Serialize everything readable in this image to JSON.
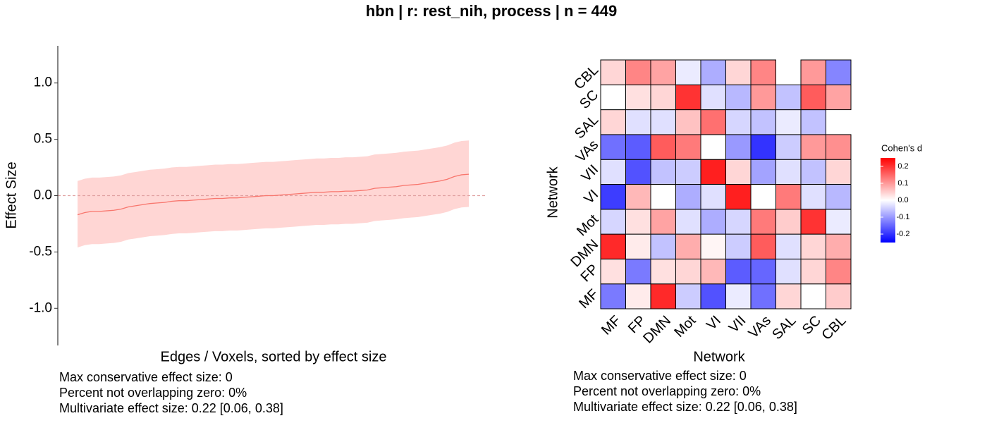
{
  "title": "hbn | r: rest_nih, process | n = 449",
  "chart_data": [
    {
      "type": "line",
      "ylabel": "Effect Size",
      "xlabel": "Edges / Voxels, sorted by effect size",
      "ylim": [
        -1.33,
        1.33
      ],
      "yticks": [
        {
          "value": -1,
          "label": "-1.0"
        },
        -0.5,
        {
          "value": 0,
          "label": "0.0"
        },
        0.5,
        {
          "value": 1,
          "label": "1.0"
        }
      ],
      "hline": 0,
      "color": "#f8766d",
      "band_color": "#ffd6d4",
      "values": [
        -0.17,
        -0.15,
        -0.14,
        -0.14,
        -0.135,
        -0.13,
        -0.12,
        -0.1,
        -0.09,
        -0.08,
        -0.07,
        -0.065,
        -0.06,
        -0.05,
        -0.045,
        -0.045,
        -0.04,
        -0.035,
        -0.03,
        -0.025,
        -0.025,
        -0.02,
        -0.02,
        -0.015,
        -0.01,
        -0.005,
        0.0,
        0.0,
        0.005,
        0.01,
        0.015,
        0.02,
        0.025,
        0.03,
        0.03,
        0.035,
        0.035,
        0.04,
        0.04,
        0.045,
        0.05,
        0.065,
        0.07,
        0.075,
        0.08,
        0.09,
        0.095,
        0.1,
        0.11,
        0.12,
        0.13,
        0.145,
        0.17,
        0.185,
        0.19
      ],
      "upper": [
        0.13,
        0.15,
        0.16,
        0.16,
        0.165,
        0.17,
        0.18,
        0.2,
        0.21,
        0.22,
        0.23,
        0.235,
        0.24,
        0.25,
        0.255,
        0.255,
        0.26,
        0.265,
        0.27,
        0.275,
        0.275,
        0.28,
        0.28,
        0.285,
        0.29,
        0.295,
        0.3,
        0.3,
        0.305,
        0.31,
        0.315,
        0.32,
        0.325,
        0.33,
        0.33,
        0.335,
        0.335,
        0.34,
        0.34,
        0.345,
        0.35,
        0.365,
        0.37,
        0.375,
        0.38,
        0.39,
        0.395,
        0.4,
        0.41,
        0.42,
        0.43,
        0.445,
        0.47,
        0.485,
        0.49
      ],
      "lower": [
        -0.46,
        -0.44,
        -0.43,
        -0.43,
        -0.425,
        -0.42,
        -0.41,
        -0.39,
        -0.38,
        -0.37,
        -0.36,
        -0.355,
        -0.35,
        -0.34,
        -0.335,
        -0.335,
        -0.33,
        -0.325,
        -0.32,
        -0.315,
        -0.315,
        -0.31,
        -0.31,
        -0.305,
        -0.3,
        -0.295,
        -0.29,
        -0.29,
        -0.285,
        -0.28,
        -0.275,
        -0.27,
        -0.265,
        -0.26,
        -0.26,
        -0.255,
        -0.255,
        -0.25,
        -0.25,
        -0.245,
        -0.24,
        -0.225,
        -0.22,
        -0.215,
        -0.21,
        -0.2,
        -0.195,
        -0.19,
        -0.18,
        -0.17,
        -0.16,
        -0.145,
        -0.12,
        -0.105,
        -0.1
      ],
      "annotations": [
        "Max conservative effect size: 0",
        "Percent not overlapping zero: 0%",
        "Multivariate effect size: 0.22 [0.06, 0.38]"
      ]
    },
    {
      "type": "heatmap",
      "xlabel": "Network",
      "ylabel": "Network",
      "categories": [
        "MF",
        "FP",
        "DMN",
        "Mot",
        "VI",
        "VII",
        "VAs",
        "SAL",
        "SC",
        "CBL"
      ],
      "y_categories": [
        "MF",
        "FP",
        "DMN",
        "Mot",
        "VI",
        "VII",
        "VAs",
        "SAL",
        "SC",
        "CBL"
      ],
      "values": [
        [
          -0.13,
          0.02,
          0.21,
          -0.05,
          -0.17,
          -0.02,
          -0.14,
          0.04,
          0.0,
          0.05
        ],
        [
          0.03,
          -0.13,
          0.03,
          0.04,
          0.07,
          -0.16,
          -0.15,
          -0.03,
          0.04,
          0.12
        ],
        [
          0.21,
          0.02,
          -0.06,
          0.08,
          0.01,
          -0.05,
          0.16,
          -0.03,
          0.04,
          0.08
        ],
        [
          -0.04,
          0.03,
          0.09,
          -0.03,
          -0.08,
          -0.04,
          0.13,
          0.05,
          0.2,
          -0.02
        ],
        [
          -0.19,
          0.07,
          0.0,
          -0.08,
          -0.03,
          0.22,
          0.0,
          0.13,
          -0.03,
          -0.07
        ],
        [
          -0.03,
          -0.17,
          -0.06,
          -0.05,
          0.22,
          0.04,
          -0.09,
          -0.03,
          -0.06,
          0.04
        ],
        [
          -0.14,
          -0.16,
          0.16,
          0.13,
          0.0,
          -0.1,
          -0.2,
          -0.05,
          0.1,
          0.11
        ],
        [
          0.04,
          -0.03,
          -0.03,
          0.06,
          0.14,
          -0.04,
          -0.06,
          -0.02,
          -0.06,
          null
        ],
        [
          0.0,
          0.03,
          0.04,
          0.2,
          -0.03,
          -0.07,
          0.1,
          -0.06,
          0.16,
          0.09
        ],
        [
          0.04,
          0.12,
          0.09,
          -0.02,
          -0.08,
          0.04,
          0.12,
          null,
          0.1,
          -0.12
        ]
      ],
      "legend_title": "Cohen's d",
      "clim": [
        -0.25,
        0.25
      ],
      "cticks": [
        -0.2,
        -0.1,
        {
          "value": 0,
          "label": "0.0"
        },
        0.1,
        0.2
      ],
      "low_color": "#0000ff",
      "mid_color": "#ffffff",
      "high_color": "#ff0000",
      "annotations": [
        "Max conservative effect size: 0",
        "Percent not overlapping zero: 0%",
        "Multivariate effect size: 0.22 [0.06, 0.38]"
      ]
    }
  ]
}
